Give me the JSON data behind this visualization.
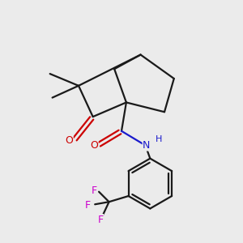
{
  "bg_color": "#ebebeb",
  "bond_color": "#1a1a1a",
  "oxygen_color": "#cc0000",
  "nitrogen_color": "#1a1acc",
  "fluorine_color": "#cc00cc",
  "line_width": 1.6,
  "fig_size": [
    3.0,
    3.0
  ],
  "dpi": 100,
  "xlim": [
    0,
    10
  ],
  "ylim": [
    0,
    10
  ]
}
